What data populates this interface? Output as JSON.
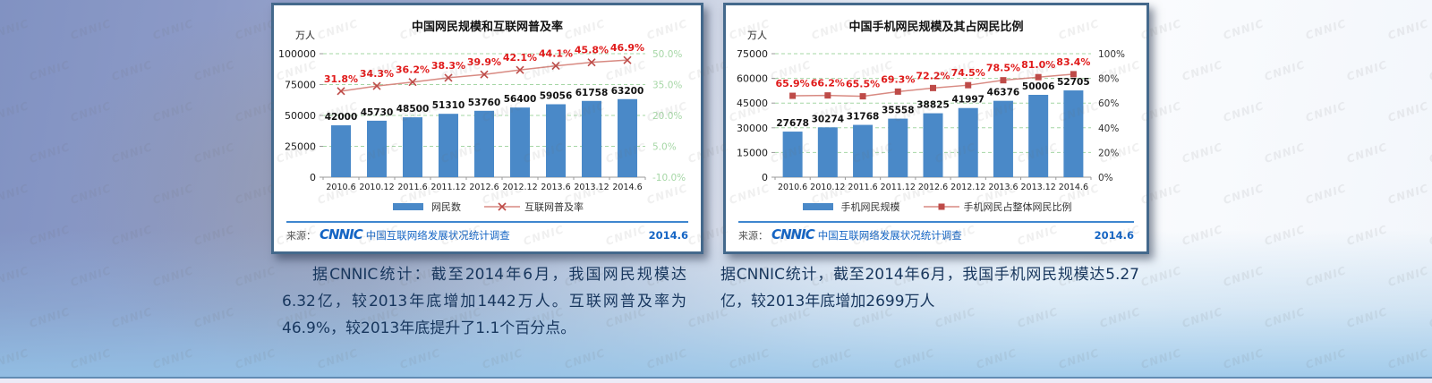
{
  "watermark_text": "CNNIC",
  "chart_data": [
    {
      "type": "bar",
      "title": "中国网民规模和互联网普及率",
      "unit_label": "万人",
      "categories": [
        "2010.6",
        "2010.12",
        "2011.6",
        "2011.12",
        "2012.6",
        "2012.12",
        "2013.6",
        "2013.12",
        "2014.6"
      ],
      "series": [
        {
          "type": "bar",
          "name": "网民数",
          "values": [
            42000,
            45730,
            48500,
            51310,
            53760,
            56400,
            59056,
            61758,
            63200
          ],
          "color": "#4A89C8",
          "axis": "left"
        },
        {
          "type": "line",
          "name": "互联网普及率",
          "values": [
            31.8,
            34.3,
            36.2,
            38.3,
            39.9,
            42.1,
            44.1,
            45.8,
            46.9
          ],
          "labels": [
            "31.8%",
            "34.3%",
            "36.2%",
            "38.3%",
            "39.9%",
            "42.1%",
            "44.1%",
            "45.8%",
            "46.9%"
          ],
          "color": "#D88A82",
          "marker": "x",
          "marker_color": "#BE4B48",
          "label_color": "#E01A1A",
          "axis": "right"
        }
      ],
      "left_axis": {
        "min": 0,
        "max": 100000,
        "tick_labels": [
          "0",
          "25000",
          "50000",
          "75000",
          "100000"
        ],
        "label_color": "#1a1a1a"
      },
      "right_axis": {
        "min": -10,
        "max": 50,
        "tick_labels": [
          "-10.0%",
          "5.0%",
          "20.0%",
          "35.0%",
          "50.0%"
        ],
        "label_color": "#A6D7A6"
      },
      "grid_color": "#A6D7A6",
      "grid": true,
      "legend_position": "bottom",
      "source": {
        "prefix": "来源：",
        "logo": "CNNIC",
        "text": "中国互联网络发展状况统计调查",
        "date": "2014.6"
      }
    },
    {
      "type": "bar",
      "title": "中国手机网民规模及其占网民比例",
      "unit_label": "万人",
      "categories": [
        "2010.6",
        "2010.12",
        "2011.6",
        "2011.12",
        "2012.6",
        "2012.12",
        "2013.6",
        "2013.12",
        "2014.6"
      ],
      "series": [
        {
          "type": "bar",
          "name": "手机网民规模",
          "values": [
            27678,
            30274,
            31768,
            35558,
            38825,
            41997,
            46376,
            50006,
            52705
          ],
          "color": "#4A89C8",
          "axis": "left"
        },
        {
          "type": "line",
          "name": "手机网民占整体网民比例",
          "values": [
            65.9,
            66.2,
            65.5,
            69.3,
            72.2,
            74.5,
            78.5,
            81.0,
            83.4
          ],
          "labels": [
            "65.9%",
            "66.2%",
            "65.5%",
            "69.3%",
            "72.2%",
            "74.5%",
            "78.5%",
            "81.0%",
            "83.4%"
          ],
          "color": "#D88A82",
          "marker": "square",
          "marker_color": "#BE4B48",
          "label_color": "#E01A1A",
          "axis": "right"
        }
      ],
      "left_axis": {
        "min": 0,
        "max": 75000,
        "tick_labels": [
          "0",
          "15000",
          "30000",
          "45000",
          "60000",
          "75000"
        ],
        "label_color": "#1a1a1a"
      },
      "right_axis": {
        "min": 0,
        "max": 100,
        "tick_labels": [
          "0%",
          "20%",
          "40%",
          "60%",
          "80%",
          "100%"
        ],
        "label_color": "#333333"
      },
      "grid_color": "#A6D7A6",
      "grid": true,
      "legend_position": "bottom",
      "source": {
        "prefix": "来源：",
        "logo": "CNNIC",
        "text": "中国互联网络发展状况统计调查",
        "date": "2014.6"
      }
    }
  ],
  "captions": {
    "left": "据CNNIC统计：截至2014年6月，我国网民规模达6.32亿，较2013年底增加1442万人。互联网普及率为46.9%，较2013年底提升了1.1个百分点。",
    "right": "据CNNIC统计，截至2014年6月，我国手机网民规模达5.27亿，较2013年底增加2699万人"
  }
}
